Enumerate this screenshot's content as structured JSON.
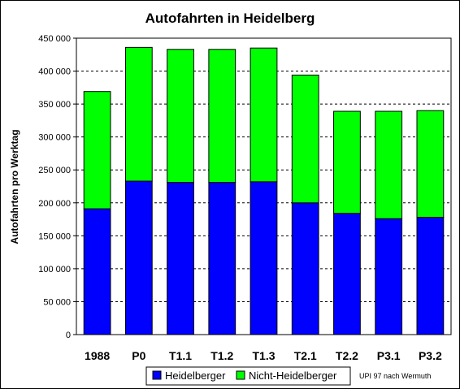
{
  "chart_data": {
    "type": "bar",
    "stacked": true,
    "title": "Autofahrten in Heidelberg",
    "ylabel": "Autofahrten pro Werktag",
    "xlabel": "",
    "ylim": [
      0,
      450000
    ],
    "yticks": [
      0,
      50000,
      100000,
      150000,
      200000,
      250000,
      300000,
      350000,
      400000,
      450000
    ],
    "ytick_labels": [
      "0",
      "50 000",
      "100 000",
      "150 000",
      "200 000",
      "250 000",
      "300 000",
      "350 000",
      "400 000",
      "450 000"
    ],
    "grid": "horizontal dashed",
    "categories": [
      "1988",
      "P0",
      "T1.1",
      "T1.2",
      "T1.3",
      "T2.1",
      "T2.2",
      "P3.1",
      "P3.2"
    ],
    "series": [
      {
        "name": "Heidelberger",
        "color": "#0000ff",
        "values": [
          191000,
          233000,
          231000,
          231000,
          232000,
          200000,
          184000,
          176000,
          178000
        ]
      },
      {
        "name": "Nicht-Heidelberger",
        "color": "#00ff00",
        "values": [
          178000,
          203000,
          202000,
          202000,
          203000,
          194000,
          155000,
          163000,
          162000
        ]
      }
    ],
    "legend_position": "bottom",
    "credit": "UPI 97 nach Wermuth"
  }
}
